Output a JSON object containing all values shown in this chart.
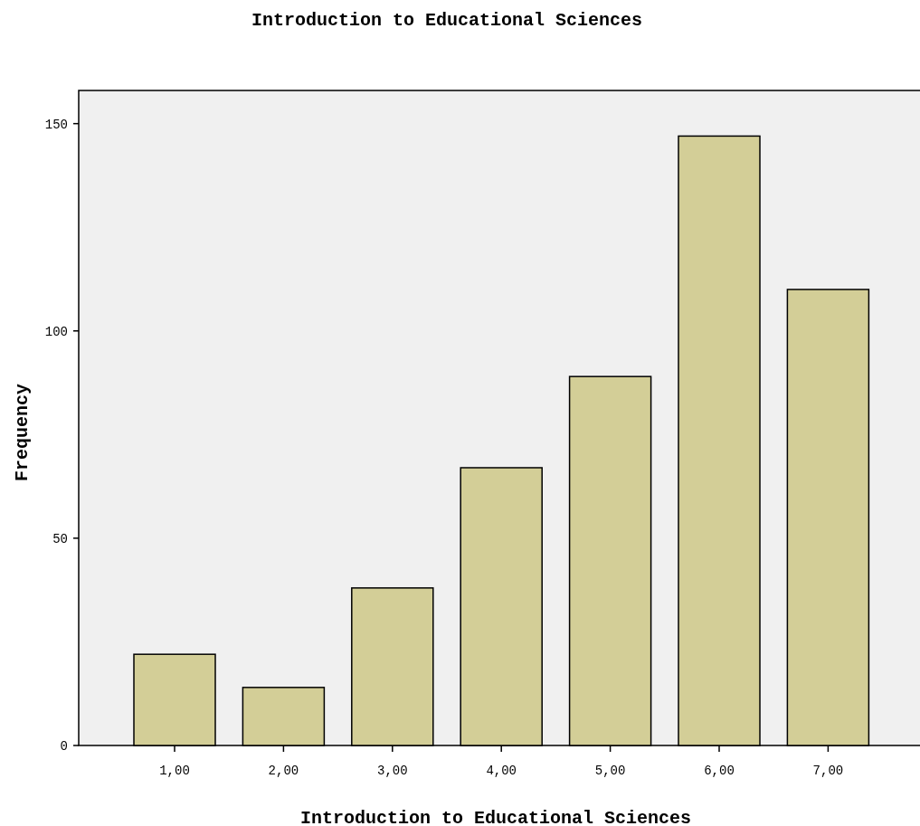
{
  "chart_data": {
    "type": "bar",
    "title": "Introduction to Educational Sciences",
    "xlabel": "Introduction to Educational Sciences",
    "ylabel": "Frequency",
    "categories": [
      "1,00",
      "2,00",
      "3,00",
      "4,00",
      "5,00",
      "6,00",
      "7,00"
    ],
    "values": [
      22,
      14,
      38,
      67,
      89,
      147,
      110
    ],
    "color": "#d3ce97",
    "ylim": [
      0,
      158
    ],
    "yticks": [
      0,
      50,
      100,
      150
    ],
    "grid": false
  }
}
